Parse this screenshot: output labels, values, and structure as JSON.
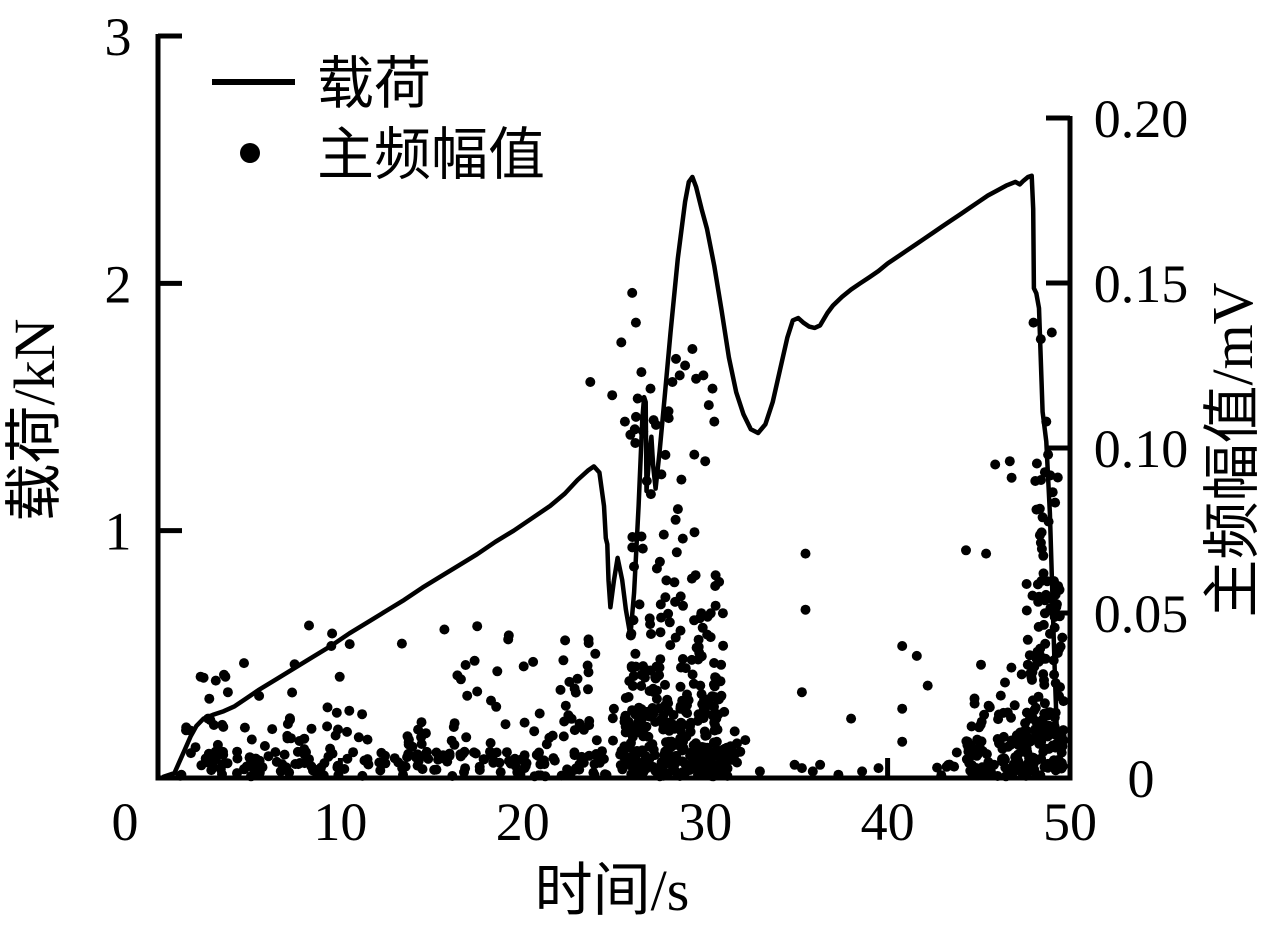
{
  "figure": {
    "background": "#ffffff",
    "ink": "#000000"
  },
  "legend": {
    "items": [
      {
        "symbol": "line",
        "label": "载荷"
      },
      {
        "symbol": "dot",
        "label": "主频幅值"
      }
    ]
  },
  "axes": {
    "x": {
      "title": "时间/s",
      "min": 0,
      "max": 50,
      "ticks": [
        {
          "v": 0,
          "label": "0"
        },
        {
          "v": 10,
          "label": "10"
        },
        {
          "v": 20,
          "label": "20"
        },
        {
          "v": 30,
          "label": "30"
        },
        {
          "v": 40,
          "label": "40"
        },
        {
          "v": 50,
          "label": "50"
        }
      ]
    },
    "y_left": {
      "title": "载荷/kN",
      "min": 0,
      "max": 3,
      "ticks": [
        {
          "v": 1,
          "label": "1"
        },
        {
          "v": 2,
          "label": "2"
        },
        {
          "v": 3,
          "label": "3"
        }
      ]
    },
    "y_right": {
      "title": "主频幅值/mV",
      "min": 0,
      "max": 0.2,
      "ticks": [
        {
          "v": 0,
          "label": "0"
        },
        {
          "v": 0.05,
          "label": "0.05"
        },
        {
          "v": 0.1,
          "label": "0.10"
        },
        {
          "v": 0.15,
          "label": "0.15"
        },
        {
          "v": 0.2,
          "label": "0.20"
        }
      ]
    }
  },
  "chart_data": {
    "type": "line+scatter",
    "x_unit": "s",
    "series": [
      {
        "name": "载荷",
        "type": "line",
        "axis": "left",
        "unit": "kN",
        "points": [
          [
            0.3,
            0.005
          ],
          [
            0.9,
            0.02
          ],
          [
            1.2,
            0.07
          ],
          [
            1.5,
            0.12
          ],
          [
            1.8,
            0.17
          ],
          [
            2.1,
            0.21
          ],
          [
            2.5,
            0.24
          ],
          [
            3.0,
            0.255
          ],
          [
            3.6,
            0.27
          ],
          [
            4.2,
            0.29
          ],
          [
            4.8,
            0.32
          ],
          [
            5.5,
            0.355
          ],
          [
            6.5,
            0.4
          ],
          [
            7.5,
            0.445
          ],
          [
            8.5,
            0.49
          ],
          [
            9.5,
            0.535
          ],
          [
            10.5,
            0.585
          ],
          [
            11.5,
            0.63
          ],
          [
            12.5,
            0.675
          ],
          [
            13.5,
            0.72
          ],
          [
            14.5,
            0.77
          ],
          [
            15.5,
            0.815
          ],
          [
            16.5,
            0.86
          ],
          [
            17.5,
            0.905
          ],
          [
            18.5,
            0.955
          ],
          [
            19.5,
            1.0
          ],
          [
            20.5,
            1.05
          ],
          [
            21.5,
            1.1
          ],
          [
            22.3,
            1.15
          ],
          [
            23.0,
            1.205
          ],
          [
            23.6,
            1.245
          ],
          [
            23.9,
            1.26
          ],
          [
            24.2,
            1.235
          ],
          [
            24.45,
            1.1
          ],
          [
            24.55,
            0.97
          ],
          [
            24.63,
            0.945
          ],
          [
            24.7,
            0.8
          ],
          [
            24.8,
            0.69
          ],
          [
            25.0,
            0.8
          ],
          [
            25.2,
            0.89
          ],
          [
            25.45,
            0.8
          ],
          [
            25.65,
            0.68
          ],
          [
            25.9,
            0.575
          ],
          [
            26.1,
            0.75
          ],
          [
            26.35,
            1.1
          ],
          [
            26.55,
            1.45
          ],
          [
            26.65,
            1.54
          ],
          [
            26.74,
            1.52
          ],
          [
            26.78,
            1.16
          ],
          [
            26.95,
            1.32
          ],
          [
            27.05,
            1.38
          ],
          [
            27.15,
            1.26
          ],
          [
            27.28,
            1.17
          ],
          [
            27.5,
            1.32
          ],
          [
            27.8,
            1.56
          ],
          [
            28.1,
            1.8
          ],
          [
            28.5,
            2.1
          ],
          [
            28.9,
            2.33
          ],
          [
            29.1,
            2.41
          ],
          [
            29.3,
            2.43
          ],
          [
            29.5,
            2.39
          ],
          [
            29.8,
            2.3
          ],
          [
            30.1,
            2.22
          ],
          [
            30.5,
            2.07
          ],
          [
            30.9,
            1.89
          ],
          [
            31.3,
            1.7
          ],
          [
            31.7,
            1.56
          ],
          [
            32.1,
            1.47
          ],
          [
            32.5,
            1.41
          ],
          [
            32.9,
            1.395
          ],
          [
            33.3,
            1.43
          ],
          [
            33.7,
            1.52
          ],
          [
            34.1,
            1.65
          ],
          [
            34.5,
            1.78
          ],
          [
            34.8,
            1.85
          ],
          [
            35.1,
            1.86
          ],
          [
            35.4,
            1.84
          ],
          [
            35.7,
            1.825
          ],
          [
            36.0,
            1.82
          ],
          [
            36.3,
            1.83
          ],
          [
            36.7,
            1.88
          ],
          [
            37.0,
            1.91
          ],
          [
            37.5,
            1.945
          ],
          [
            38.0,
            1.975
          ],
          [
            38.5,
            2.0
          ],
          [
            39.0,
            2.025
          ],
          [
            39.5,
            2.05
          ],
          [
            40.0,
            2.08
          ],
          [
            40.5,
            2.105
          ],
          [
            41.0,
            2.13
          ],
          [
            41.5,
            2.155
          ],
          [
            42.0,
            2.18
          ],
          [
            42.5,
            2.205
          ],
          [
            43.0,
            2.23
          ],
          [
            43.5,
            2.255
          ],
          [
            44.0,
            2.28
          ],
          [
            44.5,
            2.305
          ],
          [
            45.0,
            2.33
          ],
          [
            45.5,
            2.355
          ],
          [
            46.0,
            2.375
          ],
          [
            46.5,
            2.395
          ],
          [
            47.0,
            2.41
          ],
          [
            47.25,
            2.4
          ],
          [
            47.45,
            2.415
          ],
          [
            47.7,
            2.43
          ],
          [
            47.9,
            2.435
          ],
          [
            47.98,
            2.3
          ],
          [
            48.02,
            1.98
          ],
          [
            48.15,
            1.96
          ],
          [
            48.3,
            1.9
          ],
          [
            48.5,
            1.48
          ],
          [
            48.7,
            1.36
          ],
          [
            48.9,
            1.07
          ],
          [
            49.05,
            0.7
          ],
          [
            49.18,
            0.4
          ],
          [
            49.3,
            0.15
          ]
        ]
      },
      {
        "name": "主频幅值",
        "type": "scatter",
        "axis": "right",
        "unit": "mV",
        "marker_radius": 5,
        "seed": 7,
        "points": [
          [
            9.5,
            0.04
          ],
          [
            15.7,
            0.045
          ],
          [
            17.5,
            0.046
          ],
          [
            19.2,
            0.042
          ],
          [
            22.5,
            0.019
          ],
          [
            23.6,
            0.042
          ],
          [
            23.7,
            0.12
          ],
          [
            24.9,
            0.116
          ],
          [
            25.4,
            0.132
          ],
          [
            25.6,
            0.108
          ],
          [
            25.9,
            0.104
          ],
          [
            26.0,
            0.147
          ],
          [
            26.2,
            0.138
          ],
          [
            26.3,
            0.115
          ],
          [
            26.5,
            0.123
          ],
          [
            26.6,
            0.105
          ],
          [
            26.8,
            0.09
          ],
          [
            27.0,
            0.118
          ],
          [
            27.3,
            0.107
          ],
          [
            27.6,
            0.092
          ],
          [
            28.2,
            0.12
          ],
          [
            28.4,
            0.127
          ],
          [
            28.6,
            0.122
          ],
          [
            28.9,
            0.125
          ],
          [
            29.3,
            0.13
          ],
          [
            29.4,
            0.098
          ],
          [
            29.5,
            0.121
          ],
          [
            29.9,
            0.122
          ],
          [
            30.0,
            0.096
          ],
          [
            30.2,
            0.113
          ],
          [
            30.4,
            0.118
          ],
          [
            30.5,
            0.108
          ],
          [
            33.0,
            0.002
          ],
          [
            34.9,
            0.004
          ],
          [
            35.3,
            0.026
          ],
          [
            35.3,
            0.003
          ],
          [
            35.5,
            0.068
          ],
          [
            35.5,
            0.051
          ],
          [
            35.9,
            0.002
          ],
          [
            36.3,
            0.004
          ],
          [
            37.3,
            0.001
          ],
          [
            38.0,
            0.018
          ],
          [
            38.6,
            0.002
          ],
          [
            39.5,
            0.003
          ],
          [
            40.8,
            0.04
          ],
          [
            40.8,
            0.021
          ],
          [
            40.8,
            0.011
          ],
          [
            41.6,
            0.037
          ],
          [
            42.2,
            0.028
          ],
          [
            44.3,
            0.069
          ],
          [
            45.4,
            0.068
          ],
          [
            45.9,
            0.095
          ],
          [
            46.7,
            0.096
          ],
          [
            46.8,
            0.091
          ],
          [
            48.0,
            0.138
          ],
          [
            48.1,
            0.09
          ],
          [
            48.4,
            0.133
          ],
          [
            48.5,
            0.079
          ],
          [
            48.7,
            0.108
          ],
          [
            48.8,
            0.098
          ],
          [
            49.0,
            0.135
          ]
        ],
        "noise_bands": [
          {
            "t": [
              1.0,
              25.0
            ],
            "a": [
              0.0005,
              0.008
            ],
            "n": 170
          },
          {
            "t": [
              1.5,
              25.0
            ],
            "a": [
              0.008,
              0.018
            ],
            "n": 60
          },
          {
            "t": [
              2.0,
              24.5
            ],
            "a": [
              0.018,
              0.035
            ],
            "n": 26
          },
          {
            "t": [
              8.0,
              22.0
            ],
            "a": [
              0.035,
              0.047
            ],
            "n": 7
          },
          {
            "t": [
              2.3,
              3.8
            ],
            "a": [
              0.024,
              0.032
            ],
            "n": 5
          },
          {
            "t": [
              22.0,
              25.4
            ],
            "a": [
              0.0,
              0.045
            ],
            "n": 18
          },
          {
            "t": [
              25.3,
              31.3
            ],
            "a": [
              0.0005,
              0.01
            ],
            "n": 150
          },
          {
            "t": [
              25.5,
              31.2
            ],
            "a": [
              0.01,
              0.025
            ],
            "n": 110
          },
          {
            "t": [
              25.8,
              31.0
            ],
            "a": [
              0.025,
              0.05
            ],
            "n": 70
          },
          {
            "t": [
              26.0,
              30.8
            ],
            "a": [
              0.05,
              0.08
            ],
            "n": 26
          },
          {
            "t": [
              26.0,
              30.6
            ],
            "a": [
              0.08,
              0.112
            ],
            "n": 10
          },
          {
            "t": [
              31.2,
              32.4
            ],
            "a": [
              0.0,
              0.015
            ],
            "n": 12
          },
          {
            "t": [
              44.3,
              47.4
            ],
            "a": [
              0.0005,
              0.012
            ],
            "n": 70
          },
          {
            "t": [
              44.5,
              47.4
            ],
            "a": [
              0.012,
              0.035
            ],
            "n": 24
          },
          {
            "t": [
              47.4,
              49.65
            ],
            "a": [
              0.0005,
              0.02
            ],
            "n": 95
          },
          {
            "t": [
              47.6,
              49.65
            ],
            "a": [
              0.02,
              0.06
            ],
            "n": 60
          },
          {
            "t": [
              47.8,
              49.55
            ],
            "a": [
              0.06,
              0.1
            ],
            "n": 16
          },
          {
            "t": [
              42.6,
              44.3
            ],
            "a": [
              0.0,
              0.008
            ],
            "n": 7
          }
        ]
      }
    ]
  }
}
